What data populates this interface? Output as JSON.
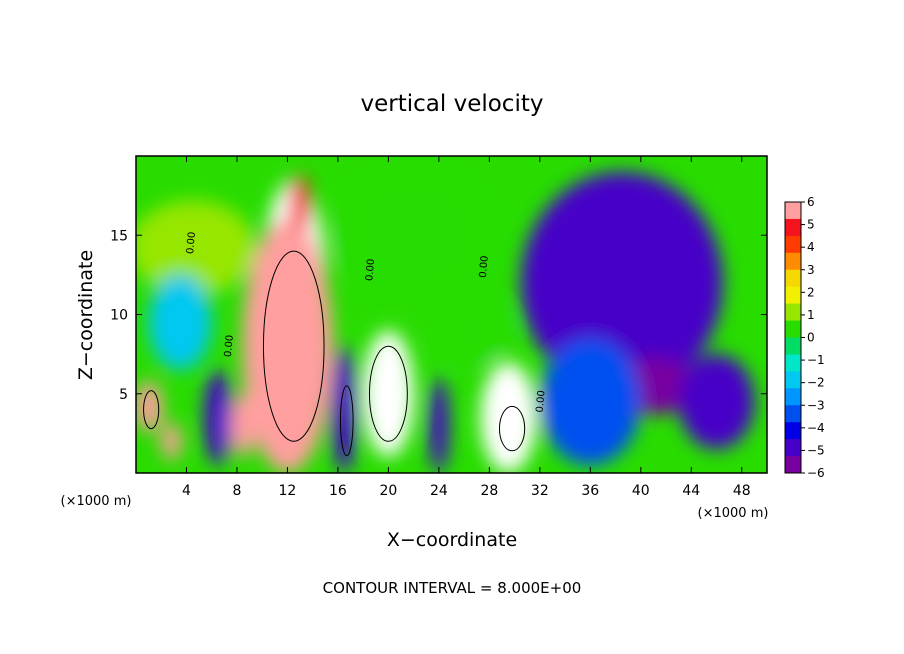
{
  "chart_data": {
    "type": "heatmap",
    "title": "vertical velocity",
    "xlabel": "X−coordinate",
    "ylabel": "Z−coordinate",
    "x_unit_left": "(×1000 m)",
    "x_unit_right": "(×1000 m)",
    "footer": "CONTOUR INTERVAL = 8.000E+00",
    "xlim": [
      0,
      50
    ],
    "ylim": [
      0,
      20
    ],
    "xticks": [
      4,
      8,
      12,
      16,
      20,
      24,
      28,
      32,
      36,
      40,
      44,
      48
    ],
    "yticks": [
      5,
      10,
      15
    ],
    "colorbar": {
      "ticks": [
        6,
        5,
        4,
        3,
        2,
        1,
        0,
        -1,
        -2,
        -3,
        -4,
        -5,
        -6
      ],
      "range": [
        -6,
        6
      ],
      "colors": [
        "#ff9f9f",
        "#f5141e",
        "#ff3c00",
        "#ff8c00",
        "#f5d800",
        "#f0f000",
        "#96e600",
        "#28dc00",
        "#00dc64",
        "#00e6c8",
        "#00c8f0",
        "#0096ff",
        "#0050f0",
        "#0000e6",
        "#4600c8",
        "#7800a0"
      ]
    },
    "contour_labels": [
      "0.00",
      "0.00",
      "0.00",
      "0.00",
      "0.00"
    ],
    "cells": [
      {
        "x": 4.5,
        "z": 14.2,
        "value": 1.5,
        "rx": 5,
        "rz": 3
      },
      {
        "x": 12.5,
        "z": 11.5,
        "value": 9,
        "rx": 2.6,
        "rz": 7
      },
      {
        "x": 12.0,
        "z": 8.0,
        "value": 6,
        "rx": 3.6,
        "rz": 8
      },
      {
        "x": 13.0,
        "z": 17.0,
        "value": 5,
        "rx": 0.8,
        "rz": 1.8
      },
      {
        "x": 3.5,
        "z": 9.5,
        "value": -1.5,
        "rx": 2.5,
        "rz": 3
      },
      {
        "x": 1.0,
        "z": 4.2,
        "value": 6,
        "rx": 1.1,
        "rz": 1.6
      },
      {
        "x": 2.8,
        "z": 2.0,
        "value": 6,
        "rx": 0.8,
        "rz": 1.2
      },
      {
        "x": 6.5,
        "z": 3.5,
        "value": -5,
        "rx": 1.1,
        "rz": 3
      },
      {
        "x": 8.5,
        "z": 3.0,
        "value": 6,
        "rx": 1.0,
        "rz": 2.0
      },
      {
        "x": 16.5,
        "z": 4.0,
        "value": -5,
        "rx": 1.0,
        "rz": 4
      },
      {
        "x": 20.0,
        "z": 5.0,
        "value": 7,
        "rx": 2.0,
        "rz": 4
      },
      {
        "x": 24.0,
        "z": 3.0,
        "value": -5,
        "rx": 0.8,
        "rz": 3
      },
      {
        "x": 29.5,
        "z": 3.5,
        "value": 7,
        "rx": 2.2,
        "rz": 3.5
      },
      {
        "x": 26.5,
        "z": 9.0,
        "value": 0.5,
        "rx": 3,
        "rz": 2
      },
      {
        "x": 38.5,
        "z": 12.0,
        "value": -4.5,
        "rx": 8,
        "rz": 7
      },
      {
        "x": 41.0,
        "z": 5.5,
        "value": -6,
        "rx": 3.5,
        "rz": 1.8
      },
      {
        "x": 46.0,
        "z": 4.5,
        "value": -4.5,
        "rx": 3,
        "rz": 3
      },
      {
        "x": 36.0,
        "z": 4.5,
        "value": -3,
        "rx": 4,
        "rz": 4
      },
      {
        "x": 22.0,
        "z": 15.0,
        "value": 0.5,
        "rx": 6,
        "rz": 4
      }
    ]
  }
}
